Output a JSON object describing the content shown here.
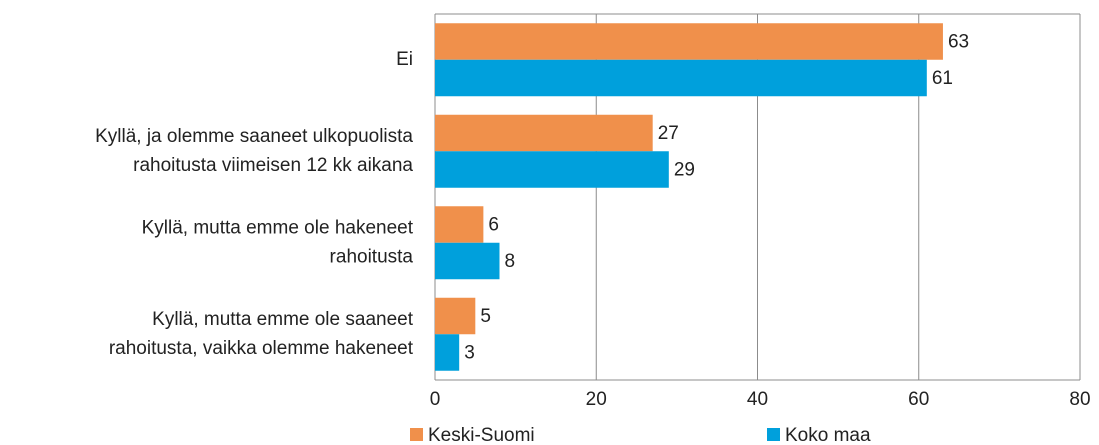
{
  "chart_data": {
    "type": "bar",
    "orientation": "horizontal",
    "categories": [
      [
        "Ei"
      ],
      [
        "Kyllä, ja olemme saaneet ulkopuolista",
        "rahoitusta viimeisen 12 kk aikana"
      ],
      [
        "Kyllä, mutta emme ole hakeneet",
        "rahoitusta"
      ],
      [
        "Kyllä, mutta emme ole saaneet",
        "rahoitusta, vaikka olemme hakeneet"
      ]
    ],
    "series": [
      {
        "name": "Keski-Suomi",
        "color": "#f0904b",
        "values": [
          63,
          27,
          6,
          5
        ]
      },
      {
        "name": "Koko maa",
        "color": "#00a0dc",
        "values": [
          61,
          29,
          8,
          3
        ]
      }
    ],
    "xlim": [
      0,
      80
    ],
    "xticks": [
      0,
      20,
      40,
      60,
      80
    ],
    "grid": true,
    "legend": "bottom"
  }
}
